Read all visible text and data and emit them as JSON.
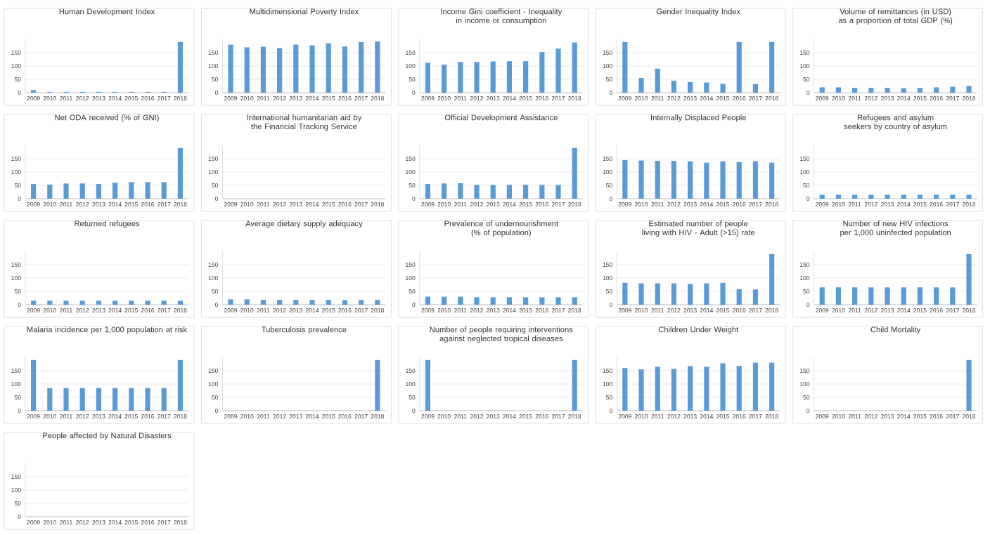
{
  "chart_data": [
    {
      "type": "bar",
      "title": "Human Development Index",
      "categories": [
        "2009",
        "2010",
        "2011",
        "2012",
        "2013",
        "2014",
        "2015",
        "2016",
        "2017",
        "2018"
      ],
      "values": [
        10,
        3,
        3,
        3,
        3,
        3,
        3,
        3,
        3,
        190
      ],
      "color": "#5b9bd5",
      "ylim": [
        0,
        200
      ],
      "yticks": [
        0,
        50,
        100,
        150
      ],
      "grid": "y"
    },
    {
      "type": "bar",
      "title": "Multidimensional Poverty Index",
      "categories": [
        "2009",
        "2010",
        "2011",
        "2012",
        "2013",
        "2014",
        "2015",
        "2016",
        "2017",
        "2018"
      ],
      "values": [
        180,
        170,
        172,
        167,
        180,
        177,
        185,
        173,
        190,
        192
      ],
      "color": "#5b9bd5",
      "ylim": [
        0,
        200
      ],
      "yticks": [
        0,
        50,
        100,
        150
      ],
      "grid": "y"
    },
    {
      "type": "bar",
      "title": "Income Gini coefficient - Inequality in income or consumption",
      "categories": [
        "2009",
        "2010",
        "2011",
        "2012",
        "2013",
        "2014",
        "2015",
        "2016",
        "2017",
        "2018"
      ],
      "values": [
        112,
        105,
        115,
        115,
        117,
        118,
        118,
        152,
        165,
        188
      ],
      "color": "#5b9bd5",
      "ylim": [
        0,
        200
      ],
      "yticks": [
        0,
        50,
        100,
        150
      ],
      "grid": "y"
    },
    {
      "type": "bar",
      "title": "Gender Inequality Index",
      "categories": [
        "2009",
        "2010",
        "2011",
        "2012",
        "2013",
        "2014",
        "2015",
        "2016",
        "2017",
        "2018"
      ],
      "values": [
        190,
        55,
        90,
        45,
        40,
        38,
        33,
        190,
        32,
        190
      ],
      "color": "#5b9bd5",
      "ylim": [
        0,
        200
      ],
      "yticks": [
        0,
        50,
        100,
        150
      ],
      "grid": "y"
    },
    {
      "type": "bar",
      "title": "Volume of remittances (in USD) as a proportion of total GDP (%)",
      "categories": [
        "2009",
        "2010",
        "2011",
        "2012",
        "2013",
        "2014",
        "2015",
        "2016",
        "2017",
        "2018"
      ],
      "values": [
        20,
        20,
        18,
        18,
        18,
        17,
        18,
        20,
        22,
        25
      ],
      "color": "#5b9bd5",
      "ylim": [
        0,
        200
      ],
      "yticks": [
        0,
        50,
        100,
        150
      ],
      "grid": "y"
    },
    {
      "type": "bar",
      "title": "Net ODA received (% of GNI)",
      "categories": [
        "2009",
        "2010",
        "2011",
        "2012",
        "2013",
        "2014",
        "2015",
        "2016",
        "2017",
        "2018"
      ],
      "values": [
        55,
        53,
        57,
        57,
        55,
        60,
        62,
        62,
        62,
        190
      ],
      "color": "#5b9bd5",
      "ylim": [
        0,
        200
      ],
      "yticks": [
        0,
        50,
        100,
        150
      ],
      "grid": "y"
    },
    {
      "type": "bar",
      "title": "International humanitarian aid by the Financial Tracking Service",
      "categories": [
        "2009",
        "2010",
        "2011",
        "2012",
        "2013",
        "2014",
        "2015",
        "2016",
        "2017",
        "2018"
      ],
      "values": [
        null,
        null,
        null,
        null,
        null,
        null,
        null,
        null,
        null,
        null
      ],
      "color": "#5b9bd5",
      "ylim": [
        0,
        200
      ],
      "yticks": [
        0,
        50,
        100,
        150
      ],
      "grid": "y"
    },
    {
      "type": "bar",
      "title": "Official Development Assistance",
      "categories": [
        "2009",
        "2010",
        "2011",
        "2012",
        "2013",
        "2014",
        "2015",
        "2016",
        "2017",
        "2018"
      ],
      "values": [
        55,
        57,
        58,
        52,
        52,
        52,
        52,
        52,
        52,
        190
      ],
      "color": "#5b9bd5",
      "ylim": [
        0,
        200
      ],
      "yticks": [
        0,
        50,
        100,
        150
      ],
      "grid": "y"
    },
    {
      "type": "bar",
      "title": "Internally Displaced People",
      "categories": [
        "2009",
        "2010",
        "2011",
        "2012",
        "2013",
        "2014",
        "2015",
        "2016",
        "2017",
        "2018"
      ],
      "values": [
        145,
        143,
        142,
        142,
        140,
        135,
        140,
        137,
        140,
        135
      ],
      "color": "#5b9bd5",
      "ylim": [
        0,
        200
      ],
      "yticks": [
        0,
        50,
        100,
        150
      ],
      "grid": "y"
    },
    {
      "type": "bar",
      "title": "Refugees and asylum seekers by country of asylum",
      "categories": [
        "2009",
        "2010",
        "2011",
        "2012",
        "2013",
        "2014",
        "2015",
        "2016",
        "2017",
        "2018"
      ],
      "values": [
        15,
        15,
        15,
        15,
        15,
        15,
        15,
        15,
        15,
        15
      ],
      "color": "#5b9bd5",
      "ylim": [
        0,
        200
      ],
      "yticks": [
        0,
        50,
        100,
        150
      ],
      "grid": "y"
    },
    {
      "type": "bar",
      "title": "Returned refugees",
      "categories": [
        "2009",
        "2010",
        "2011",
        "2012",
        "2013",
        "2014",
        "2015",
        "2016",
        "2017",
        "2018"
      ],
      "values": [
        15,
        15,
        15,
        15,
        15,
        15,
        15,
        15,
        15,
        15
      ],
      "color": "#5b9bd5",
      "ylim": [
        0,
        200
      ],
      "yticks": [
        0,
        50,
        100,
        150
      ],
      "grid": "y"
    },
    {
      "type": "bar",
      "title": "Average dietary supply adequacy",
      "categories": [
        "2009",
        "2010",
        "2011",
        "2012",
        "2013",
        "2014",
        "2015",
        "2016",
        "2017",
        "2018"
      ],
      "values": [
        20,
        20,
        18,
        18,
        18,
        18,
        18,
        17,
        18,
        18
      ],
      "color": "#5b9bd5",
      "ylim": [
        0,
        200
      ],
      "yticks": [
        0,
        50,
        100,
        150
      ],
      "grid": "y"
    },
    {
      "type": "bar",
      "title": "Prevalence of undernourishment (% of population)",
      "categories": [
        "2009",
        "2010",
        "2011",
        "2012",
        "2013",
        "2014",
        "2015",
        "2016",
        "2017",
        "2018"
      ],
      "values": [
        30,
        30,
        30,
        28,
        28,
        28,
        28,
        28,
        28,
        28
      ],
      "color": "#5b9bd5",
      "ylim": [
        0,
        200
      ],
      "yticks": [
        0,
        50,
        100,
        150
      ],
      "grid": "y"
    },
    {
      "type": "bar",
      "title": "Estimated number of people living with HIV - Adult (>15) rate",
      "categories": [
        "2009",
        "2010",
        "2011",
        "2012",
        "2013",
        "2014",
        "2015",
        "2016",
        "2017",
        "2018"
      ],
      "values": [
        82,
        80,
        80,
        80,
        78,
        80,
        82,
        58,
        57,
        190
      ],
      "color": "#5b9bd5",
      "ylim": [
        0,
        200
      ],
      "yticks": [
        0,
        50,
        100,
        150
      ],
      "grid": "y"
    },
    {
      "type": "bar",
      "title": "Number of new HIV infections per 1,000 uninfected population",
      "categories": [
        "2009",
        "2010",
        "2011",
        "2012",
        "2013",
        "2014",
        "2015",
        "2016",
        "2017",
        "2018"
      ],
      "values": [
        65,
        65,
        65,
        65,
        65,
        65,
        65,
        65,
        65,
        190
      ],
      "color": "#5b9bd5",
      "ylim": [
        0,
        200
      ],
      "yticks": [
        0,
        50,
        100,
        150
      ],
      "grid": "y"
    },
    {
      "type": "bar",
      "title": "Malaria incidence per 1,000 population at risk",
      "categories": [
        "2009",
        "2010",
        "2011",
        "2012",
        "2013",
        "2014",
        "2015",
        "2016",
        "2017",
        "2018"
      ],
      "values": [
        190,
        85,
        85,
        85,
        85,
        85,
        85,
        85,
        85,
        190
      ],
      "color": "#5b9bd5",
      "ylim": [
        0,
        200
      ],
      "yticks": [
        0,
        50,
        100,
        150
      ],
      "grid": "y"
    },
    {
      "type": "bar",
      "title": "Tuberculosis prevalence",
      "categories": [
        "2009",
        "2010",
        "2011",
        "2012",
        "2013",
        "2014",
        "2015",
        "2016",
        "2017",
        "2018"
      ],
      "values": [
        0,
        0,
        0,
        0,
        0,
        0,
        0,
        0,
        0,
        190
      ],
      "color": "#5b9bd5",
      "ylim": [
        0,
        200
      ],
      "yticks": [
        0,
        50,
        100,
        150
      ],
      "grid": "y"
    },
    {
      "type": "bar",
      "title": "Number of people requiring interventions against neglected tropical diseases",
      "categories": [
        "2009",
        "2010",
        "2011",
        "2012",
        "2013",
        "2014",
        "2015",
        "2016",
        "2017",
        "2018"
      ],
      "values": [
        190,
        0,
        0,
        0,
        0,
        0,
        0,
        0,
        0,
        190
      ],
      "color": "#5b9bd5",
      "ylim": [
        0,
        200
      ],
      "yticks": [
        0,
        50,
        100,
        150
      ],
      "grid": "y"
    },
    {
      "type": "bar",
      "title": "Children Under Weight",
      "categories": [
        "2009",
        "2010",
        "2011",
        "2012",
        "2013",
        "2014",
        "2015",
        "2016",
        "2017",
        "2018"
      ],
      "values": [
        160,
        155,
        165,
        157,
        167,
        165,
        178,
        168,
        180,
        180
      ],
      "color": "#5b9bd5",
      "ylim": [
        0,
        200
      ],
      "yticks": [
        0,
        50,
        100,
        150
      ],
      "grid": "y"
    },
    {
      "type": "bar",
      "title": "Child Mortality",
      "categories": [
        "2009",
        "2010",
        "2011",
        "2012",
        "2013",
        "2014",
        "2015",
        "2016",
        "2017",
        "2018"
      ],
      "values": [
        0,
        0,
        0,
        0,
        0,
        0,
        0,
        0,
        0,
        190
      ],
      "color": "#5b9bd5",
      "ylim": [
        0,
        200
      ],
      "yticks": [
        0,
        50,
        100,
        150
      ],
      "grid": "y"
    },
    {
      "type": "bar",
      "title": "People affected by Natural Disasters",
      "categories": [
        "2009",
        "2010",
        "2011",
        "2012",
        "2013",
        "2014",
        "2015",
        "2016",
        "2017",
        "2018"
      ],
      "values": [
        null,
        null,
        null,
        null,
        null,
        null,
        null,
        null,
        null,
        null
      ],
      "color": "#5b9bd5",
      "ylim": [
        0,
        200
      ],
      "yticks": [
        0,
        50,
        100,
        150
      ],
      "grid": "y"
    }
  ]
}
